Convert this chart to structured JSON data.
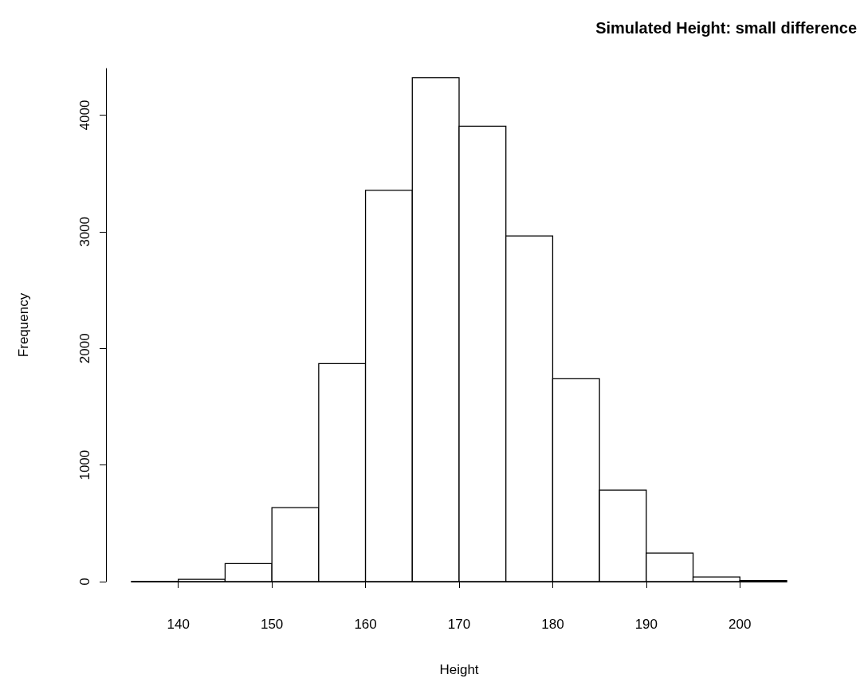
{
  "chart_data": {
    "type": "histogram",
    "title": "Simulated Height: small difference",
    "xlabel": "Height",
    "ylabel": "Frequency",
    "bins": [
      135,
      140,
      145,
      150,
      155,
      160,
      165,
      170,
      175,
      180,
      185,
      190,
      195,
      200,
      205
    ],
    "values": [
      3,
      20,
      155,
      635,
      1870,
      3355,
      4320,
      3905,
      2965,
      1740,
      785,
      245,
      40,
      10
    ],
    "color": "#ffffff",
    "xlim": [
      135,
      205
    ],
    "xticks": [
      140,
      150,
      160,
      170,
      180,
      190,
      200
    ],
    "ylim": [
      0,
      4400
    ],
    "yticks": [
      0,
      1000,
      2000,
      3000,
      4000
    ],
    "grid": false
  }
}
